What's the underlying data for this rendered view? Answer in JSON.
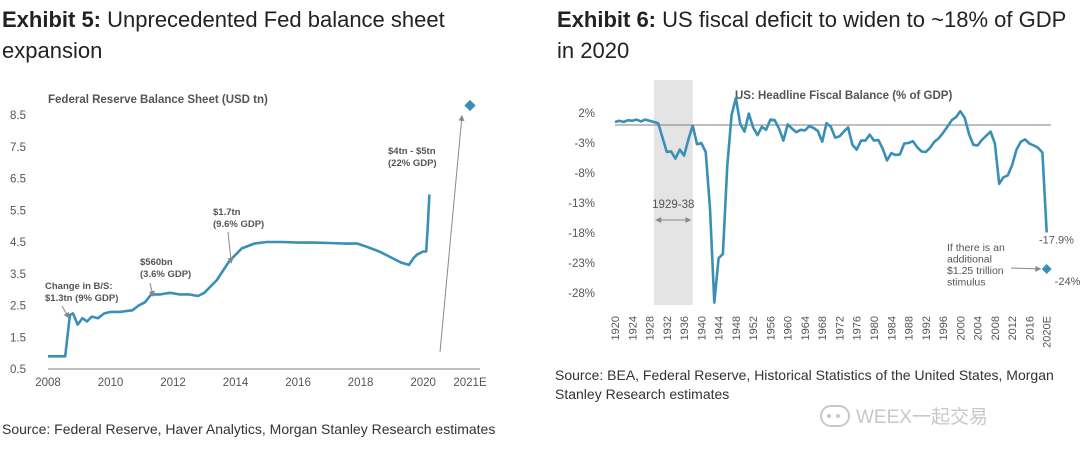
{
  "colors": {
    "line": "#3a8fb7",
    "axis": "#7f7f7f",
    "text": "#555555",
    "shade": "#e4e4e4",
    "arrow": "#888888"
  },
  "exhibit5": {
    "tag": "Exhibit 5:",
    "title_text": "Unprecedented Fed balance sheet expansion",
    "source": "Source: Federal Reserve, Haver Analytics, Morgan Stanley Research estimates"
  },
  "exhibit6": {
    "tag": "Exhibit 6:",
    "title_text": "US fiscal deficit to widen to ~18% of GDP in 2020",
    "source": "Source: BEA, Federal Reserve, Historical Statistics of the United States, Morgan Stanley Research estimates"
  },
  "watermark": {
    "text": "WEEX一起交易"
  },
  "chart_data": [
    {
      "type": "line",
      "title": "Federal Reserve Balance Sheet (USD tn)",
      "xlabel": "",
      "ylabel": "",
      "xlim": [
        2008,
        2021.5
      ],
      "ylim": [
        0.5,
        8.5
      ],
      "yticks": [
        "0.5",
        "1.5",
        "2.5",
        "3.5",
        "4.5",
        "5.5",
        "6.5",
        "7.5",
        "8.5"
      ],
      "ytick_values": [
        0.5,
        1.5,
        2.5,
        3.5,
        4.5,
        5.5,
        6.5,
        7.5,
        8.5
      ],
      "xticks": [
        "2008",
        "2010",
        "2012",
        "2014",
        "2016",
        "2018",
        "2020",
        "2021E"
      ],
      "xtick_values": [
        2008,
        2010,
        2012,
        2014,
        2016,
        2018,
        2020,
        2021.5
      ],
      "grid": false,
      "series": [
        {
          "name": "Fed balance sheet",
          "x": [
            2008.0,
            2008.55,
            2008.7,
            2008.8,
            2008.95,
            2009.1,
            2009.25,
            2009.4,
            2009.6,
            2009.8,
            2010.0,
            2010.3,
            2010.7,
            2010.9,
            2011.1,
            2011.3,
            2011.6,
            2011.9,
            2012.2,
            2012.5,
            2012.8,
            2013.0,
            2013.4,
            2013.8,
            2014.2,
            2014.6,
            2015.0,
            2015.5,
            2016.0,
            2016.5,
            2017.0,
            2017.5,
            2017.9,
            2018.2,
            2018.6,
            2019.0,
            2019.3,
            2019.55,
            2019.7,
            2019.8,
            2020.0,
            2020.1,
            2020.15,
            2020.2
          ],
          "values": [
            0.9,
            0.9,
            2.2,
            2.25,
            1.9,
            2.1,
            2.0,
            2.15,
            2.1,
            2.25,
            2.3,
            2.3,
            2.35,
            2.5,
            2.6,
            2.85,
            2.85,
            2.9,
            2.85,
            2.85,
            2.8,
            2.9,
            3.3,
            3.9,
            4.3,
            4.45,
            4.5,
            4.5,
            4.48,
            4.48,
            4.47,
            4.45,
            4.45,
            4.35,
            4.2,
            4.0,
            3.85,
            3.78,
            4.0,
            4.1,
            4.2,
            4.2,
            5.0,
            6.0
          ]
        },
        {
          "name": "2021E estimate",
          "x": [
            2021.5
          ],
          "values": [
            8.8
          ]
        }
      ],
      "annotations": [
        {
          "line1": "Change in B/S:",
          "line2": "$1.3tn (9% GDP)",
          "x": 2008.7,
          "y": 2.2
        },
        {
          "line1": "$560bn",
          "line2": "(3.6% GDP)",
          "x": 2011.3,
          "y": 2.85
        },
        {
          "line1": "$1.7tn",
          "line2": "(9.6% GDP)",
          "x": 2013.8,
          "y": 3.9
        },
        {
          "line1": "$4tn - $5tn",
          "line2": "(22% GDP)",
          "x": 2021.5,
          "y": 8.8
        }
      ]
    },
    {
      "type": "line",
      "title": "US: Headline Fiscal Balance (% of GDP)",
      "xlabel": "",
      "ylabel": "",
      "xlim": [
        1920,
        2021
      ],
      "ylim": [
        -28,
        2
      ],
      "yticks": [
        "2%",
        "-3%",
        "-8%",
        "-13%",
        "-18%",
        "-23%",
        "-28%"
      ],
      "ytick_values": [
        2,
        -3,
        -8,
        -13,
        -18,
        -23,
        -28
      ],
      "xticks": [
        "1920",
        "1924",
        "1928",
        "1932",
        "1936",
        "1940",
        "1944",
        "1948",
        "1952",
        "1956",
        "1960",
        "1964",
        "1968",
        "1972",
        "1976",
        "1980",
        "1984",
        "1988",
        "1992",
        "1996",
        "2000",
        "2004",
        "2008",
        "2012",
        "2016",
        "2020E"
      ],
      "xtick_values": [
        1920,
        1924,
        1928,
        1932,
        1936,
        1940,
        1944,
        1948,
        1952,
        1956,
        1960,
        1964,
        1968,
        1972,
        1976,
        1980,
        1984,
        1988,
        1992,
        1996,
        2000,
        2004,
        2008,
        2012,
        2016,
        2020
      ],
      "shaded_range": [
        1929,
        1938
      ],
      "shaded_label": "1929-38",
      "grid": false,
      "series": [
        {
          "name": "Headline fiscal balance",
          "x": [
            1920,
            1921,
            1922,
            1923,
            1924,
            1925,
            1926,
            1927,
            1928,
            1929,
            1930,
            1931,
            1932,
            1933,
            1934,
            1935,
            1936,
            1937,
            1938,
            1939,
            1940,
            1941,
            1942,
            1943,
            1944,
            1945,
            1946,
            1947,
            1948,
            1949,
            1950,
            1951,
            1952,
            1953,
            1954,
            1955,
            1956,
            1957,
            1958,
            1959,
            1960,
            1961,
            1962,
            1963,
            1964,
            1965,
            1966,
            1967,
            1968,
            1969,
            1970,
            1971,
            1972,
            1973,
            1974,
            1975,
            1976,
            1977,
            1978,
            1979,
            1980,
            1981,
            1982,
            1983,
            1984,
            1985,
            1986,
            1987,
            1988,
            1989,
            1990,
            1991,
            1992,
            1993,
            1994,
            1995,
            1996,
            1997,
            1998,
            1999,
            2000,
            2001,
            2002,
            2003,
            2004,
            2005,
            2006,
            2007,
            2008,
            2009,
            2010,
            2011,
            2012,
            2013,
            2014,
            2015,
            2016,
            2017,
            2018,
            2019,
            2020
          ],
          "values": [
            0.5,
            0.7,
            0.5,
            0.8,
            0.7,
            0.9,
            0.6,
            0.9,
            0.7,
            0.5,
            0.3,
            -2.1,
            -4.5,
            -4.4,
            -5.6,
            -4.1,
            -5.1,
            -2.4,
            -0.1,
            -3.2,
            -3.0,
            -4.5,
            -13.9,
            -29.6,
            -22.2,
            -21.5,
            -7.0,
            1.7,
            4.5,
            0.2,
            -1.1,
            1.9,
            -0.4,
            -1.7,
            -0.3,
            -0.8,
            0.9,
            0.8,
            -0.6,
            -2.6,
            0.1,
            -0.6,
            -1.2,
            -0.8,
            -0.9,
            -0.2,
            -0.5,
            -1.0,
            -2.8,
            0.3,
            -0.3,
            -2.1,
            -1.9,
            -1.1,
            -0.4,
            -3.3,
            -4.1,
            -2.6,
            -2.6,
            -1.6,
            -2.6,
            -2.5,
            -3.9,
            -5.9,
            -4.7,
            -5.0,
            -4.9,
            -3.1,
            -3.0,
            -2.7,
            -3.7,
            -4.4,
            -4.5,
            -3.8,
            -2.8,
            -2.2,
            -1.3,
            -0.3,
            0.8,
            1.3,
            2.3,
            1.2,
            -1.5,
            -3.3,
            -3.4,
            -2.5,
            -1.8,
            -1.1,
            -3.1,
            -9.8,
            -8.7,
            -8.4,
            -6.7,
            -4.1,
            -2.8,
            -2.4,
            -3.1,
            -3.4,
            -3.8,
            -4.6,
            -17.9
          ]
        },
        {
          "name": "With additional stimulus",
          "x": [
            2020
          ],
          "values": [
            -24
          ]
        }
      ],
      "annotations": [
        {
          "text": "-17.9%",
          "x": 2020,
          "y": -17.9
        },
        {
          "text": "-24%",
          "x": 2020,
          "y": -24
        },
        {
          "lines": [
            "If there is an",
            "additional",
            "$1.25 trillion",
            "stimulus"
          ]
        }
      ]
    }
  ]
}
